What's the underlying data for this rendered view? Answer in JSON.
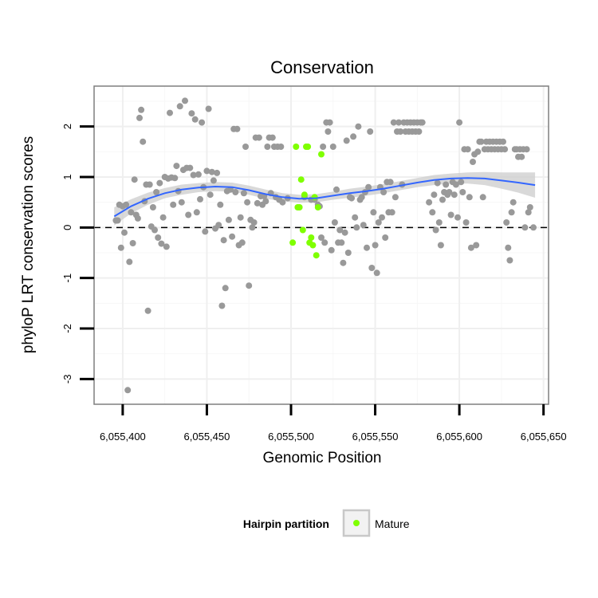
{
  "chart_data": {
    "type": "scatter",
    "title": "Conservation",
    "xlabel": "Genomic Position",
    "ylabel": "phyloP LRT conservation scores",
    "xlim": [
      6055383,
      6055653
    ],
    "ylim": [
      -3.5,
      2.8
    ],
    "x_ticks": [
      6055400,
      6055450,
      6055500,
      6055550,
      6055600,
      6055650
    ],
    "x_tick_labels": [
      "6,055,400",
      "6,055,450",
      "6,055,500",
      "6,055,550",
      "6,055,600",
      "6,055,650"
    ],
    "y_ticks": [
      -3,
      -2,
      -1,
      0,
      1,
      2
    ],
    "y_tick_labels": [
      "-3",
      "-2",
      "-1",
      "0",
      "1",
      "2"
    ],
    "grid": true,
    "reference_line": {
      "y": 0,
      "style": "dashed"
    },
    "legend": {
      "title": "Hairpin partition",
      "placement": "bottom",
      "entries": [
        {
          "label": "Mature",
          "color": "#7fff00"
        }
      ]
    },
    "colors": {
      "other": "#999999",
      "mature": "#7fff00",
      "smooth": "#3366ff",
      "ribbon": "#cccccc"
    },
    "series": [
      {
        "role": "other",
        "points": [
          [
            6055396,
            0.14
          ],
          [
            6055397,
            0.14
          ],
          [
            6055398,
            0.45
          ],
          [
            6055399,
            -0.4
          ],
          [
            6055400,
            0.42
          ],
          [
            6055401,
            -0.1
          ],
          [
            6055402,
            0.45
          ],
          [
            6055403,
            -3.22
          ],
          [
            6055404,
            -0.68
          ],
          [
            6055405,
            0.3
          ],
          [
            6055406,
            -0.31
          ],
          [
            6055407,
            0.95
          ],
          [
            6055408,
            0.25
          ],
          [
            6055409,
            0.18
          ],
          [
            6055410,
            2.17
          ],
          [
            6055411,
            2.33
          ],
          [
            6055412,
            1.7
          ],
          [
            6055413,
            0.52
          ],
          [
            6055414,
            0.85
          ],
          [
            6055415,
            -1.65
          ],
          [
            6055416,
            0.85
          ],
          [
            6055417,
            0.02
          ],
          [
            6055418,
            0.4
          ],
          [
            6055419,
            -0.05
          ],
          [
            6055420,
            0.7
          ],
          [
            6055421,
            -0.2
          ],
          [
            6055422,
            0.88
          ],
          [
            6055423,
            -0.32
          ],
          [
            6055424,
            0.2
          ],
          [
            6055425,
            1.0
          ],
          [
            6055426,
            -0.38
          ],
          [
            6055427,
            0.97
          ],
          [
            6055428,
            2.27
          ],
          [
            6055429,
            0.99
          ],
          [
            6055430,
            0.45
          ],
          [
            6055431,
            0.98
          ],
          [
            6055432,
            1.22
          ],
          [
            6055433,
            0.72
          ],
          [
            6055434,
            2.4
          ],
          [
            6055435,
            0.5
          ],
          [
            6055436,
            1.14
          ],
          [
            6055437,
            2.51
          ],
          [
            6055438,
            1.18
          ],
          [
            6055439,
            0.25
          ],
          [
            6055440,
            1.18
          ],
          [
            6055441,
            2.26
          ],
          [
            6055442,
            1.04
          ],
          [
            6055443,
            2.14
          ],
          [
            6055444,
            0.3
          ],
          [
            6055445,
            1.05
          ],
          [
            6055446,
            0.56
          ],
          [
            6055447,
            2.08
          ],
          [
            6055448,
            0.8
          ],
          [
            6055449,
            -0.08
          ],
          [
            6055450,
            1.12
          ],
          [
            6055451,
            2.35
          ],
          [
            6055452,
            0.65
          ],
          [
            6055453,
            1.1
          ],
          [
            6055454,
            0.93
          ],
          [
            6055455,
            -0.02
          ],
          [
            6055456,
            1.08
          ],
          [
            6055457,
            0.05
          ],
          [
            6055458,
            0.45
          ],
          [
            6055459,
            -1.55
          ],
          [
            6055460,
            -0.25
          ],
          [
            6055461,
            -1.2
          ],
          [
            6055462,
            0.72
          ],
          [
            6055463,
            0.15
          ],
          [
            6055464,
            0.75
          ],
          [
            6055465,
            -0.18
          ],
          [
            6055466,
            1.95
          ],
          [
            6055467,
            0.7
          ],
          [
            6055468,
            1.95
          ],
          [
            6055469,
            -0.35
          ],
          [
            6055470,
            0.2
          ],
          [
            6055471,
            -0.3
          ],
          [
            6055472,
            0.68
          ],
          [
            6055473,
            1.6
          ],
          [
            6055474,
            0.5
          ],
          [
            6055475,
            -1.15
          ],
          [
            6055476,
            0.15
          ],
          [
            6055477,
            0.0
          ],
          [
            6055478,
            0.1
          ],
          [
            6055479,
            1.78
          ],
          [
            6055480,
            0.48
          ],
          [
            6055481,
            1.78
          ],
          [
            6055482,
            0.62
          ],
          [
            6055483,
            0.45
          ],
          [
            6055484,
            0.62
          ],
          [
            6055485,
            0.52
          ],
          [
            6055486,
            1.6
          ],
          [
            6055487,
            1.78
          ],
          [
            6055488,
            0.68
          ],
          [
            6055489,
            1.78
          ],
          [
            6055490,
            1.6
          ],
          [
            6055491,
            0.6
          ],
          [
            6055492,
            1.6
          ],
          [
            6055493,
            0.55
          ],
          [
            6055494,
            1.6
          ],
          [
            6055495,
            0.5
          ],
          [
            6055498,
            0.58
          ],
          [
            6055508,
            0.6
          ],
          [
            6055512,
            0.55
          ],
          [
            6055514,
            0.55
          ],
          [
            6055516,
            0.45
          ],
          [
            6055517,
            0.42
          ],
          [
            6055518,
            -0.2
          ],
          [
            6055519,
            1.6
          ],
          [
            6055520,
            -0.3
          ],
          [
            6055521,
            2.08
          ],
          [
            6055522,
            1.9
          ],
          [
            6055523,
            2.08
          ],
          [
            6055524,
            -0.45
          ],
          [
            6055525,
            1.6
          ],
          [
            6055526,
            0.1
          ],
          [
            6055527,
            0.75
          ],
          [
            6055528,
            -0.3
          ],
          [
            6055529,
            -0.05
          ],
          [
            6055530,
            -0.3
          ],
          [
            6055531,
            -0.7
          ],
          [
            6055532,
            -0.1
          ],
          [
            6055533,
            1.72
          ],
          [
            6055534,
            -0.5
          ],
          [
            6055535,
            0.6
          ],
          [
            6055536,
            0.58
          ],
          [
            6055537,
            1.8
          ],
          [
            6055538,
            0.2
          ],
          [
            6055539,
            0.0
          ],
          [
            6055540,
            2.0
          ],
          [
            6055541,
            0.55
          ],
          [
            6055542,
            0.6
          ],
          [
            6055543,
            0.05
          ],
          [
            6055544,
            0.7
          ],
          [
            6055545,
            -0.4
          ],
          [
            6055546,
            0.8
          ],
          [
            6055547,
            1.9
          ],
          [
            6055548,
            -0.8
          ],
          [
            6055549,
            0.3
          ],
          [
            6055550,
            -0.35
          ],
          [
            6055551,
            -0.9
          ],
          [
            6055552,
            0.1
          ],
          [
            6055553,
            0.8
          ],
          [
            6055554,
            0.2
          ],
          [
            6055555,
            0.7
          ],
          [
            6055556,
            -0.2
          ],
          [
            6055557,
            0.9
          ],
          [
            6055558,
            0.3
          ],
          [
            6055559,
            0.9
          ],
          [
            6055560,
            0.3
          ],
          [
            6055561,
            2.08
          ],
          [
            6055562,
            0.6
          ],
          [
            6055563,
            1.9
          ],
          [
            6055564,
            2.08
          ],
          [
            6055565,
            1.9
          ],
          [
            6055566,
            0.85
          ],
          [
            6055567,
            2.08
          ],
          [
            6055568,
            1.9
          ],
          [
            6055569,
            2.08
          ],
          [
            6055570,
            1.9
          ],
          [
            6055571,
            2.08
          ],
          [
            6055572,
            1.9
          ],
          [
            6055573,
            2.08
          ],
          [
            6055574,
            1.9
          ],
          [
            6055575,
            2.08
          ],
          [
            6055576,
            1.9
          ],
          [
            6055577,
            2.08
          ],
          [
            6055578,
            2.08
          ],
          [
            6055582,
            0.5
          ],
          [
            6055584,
            0.3
          ],
          [
            6055585,
            0.65
          ],
          [
            6055586,
            -0.05
          ],
          [
            6055587,
            0.88
          ],
          [
            6055588,
            0.1
          ],
          [
            6055589,
            -0.35
          ],
          [
            6055590,
            0.55
          ],
          [
            6055591,
            0.7
          ],
          [
            6055592,
            0.85
          ],
          [
            6055593,
            0.65
          ],
          [
            6055594,
            0.7
          ],
          [
            6055595,
            0.25
          ],
          [
            6055596,
            0.9
          ],
          [
            6055597,
            0.65
          ],
          [
            6055598,
            0.85
          ],
          [
            6055599,
            0.2
          ],
          [
            6055600,
            2.08
          ],
          [
            6055601,
            0.9
          ],
          [
            6055602,
            0.7
          ],
          [
            6055603,
            1.55
          ],
          [
            6055604,
            0.1
          ],
          [
            6055605,
            1.55
          ],
          [
            6055606,
            0.6
          ],
          [
            6055607,
            -0.4
          ],
          [
            6055608,
            1.3
          ],
          [
            6055609,
            1.45
          ],
          [
            6055610,
            -0.35
          ],
          [
            6055611,
            1.5
          ],
          [
            6055612,
            1.7
          ],
          [
            6055613,
            1.7
          ],
          [
            6055614,
            0.6
          ],
          [
            6055615,
            1.55
          ],
          [
            6055616,
            1.7
          ],
          [
            6055617,
            1.55
          ],
          [
            6055618,
            1.7
          ],
          [
            6055619,
            1.55
          ],
          [
            6055620,
            1.7
          ],
          [
            6055621,
            1.55
          ],
          [
            6055622,
            1.7
          ],
          [
            6055623,
            1.55
          ],
          [
            6055624,
            1.7
          ],
          [
            6055625,
            1.55
          ],
          [
            6055626,
            1.7
          ],
          [
            6055627,
            1.55
          ],
          [
            6055628,
            0.1
          ],
          [
            6055629,
            -0.4
          ],
          [
            6055630,
            -0.65
          ],
          [
            6055631,
            0.3
          ],
          [
            6055632,
            0.5
          ],
          [
            6055633,
            1.55
          ],
          [
            6055634,
            1.55
          ],
          [
            6055635,
            1.4
          ],
          [
            6055636,
            1.55
          ],
          [
            6055637,
            1.4
          ],
          [
            6055638,
            1.55
          ],
          [
            6055639,
            0.0
          ],
          [
            6055640,
            1.55
          ],
          [
            6055641,
            0.3
          ],
          [
            6055642,
            0.4
          ],
          [
            6055644,
            0.0
          ]
        ]
      },
      {
        "name": "Mature",
        "role": "mature",
        "points": [
          [
            6055501,
            -0.3
          ],
          [
            6055503,
            1.6
          ],
          [
            6055504,
            0.4
          ],
          [
            6055505,
            0.4
          ],
          [
            6055506,
            0.95
          ],
          [
            6055507,
            -0.05
          ],
          [
            6055508,
            0.65
          ],
          [
            6055509,
            1.6
          ],
          [
            6055510,
            1.6
          ],
          [
            6055511,
            -0.3
          ],
          [
            6055512,
            -0.2
          ],
          [
            6055513,
            -0.35
          ],
          [
            6055514,
            0.6
          ],
          [
            6055515,
            -0.55
          ],
          [
            6055516,
            0.4
          ],
          [
            6055518,
            1.45
          ]
        ]
      }
    ],
    "smooth": [
      [
        6055395,
        0.22
      ],
      [
        6055405,
        0.42
      ],
      [
        6055415,
        0.57
      ],
      [
        6055425,
        0.68
      ],
      [
        6055435,
        0.75
      ],
      [
        6055445,
        0.79
      ],
      [
        6055455,
        0.81
      ],
      [
        6055465,
        0.8
      ],
      [
        6055475,
        0.74
      ],
      [
        6055485,
        0.66
      ],
      [
        6055495,
        0.6
      ],
      [
        6055505,
        0.57
      ],
      [
        6055515,
        0.58
      ],
      [
        6055525,
        0.63
      ],
      [
        6055535,
        0.68
      ],
      [
        6055545,
        0.72
      ],
      [
        6055555,
        0.77
      ],
      [
        6055565,
        0.83
      ],
      [
        6055575,
        0.89
      ],
      [
        6055585,
        0.94
      ],
      [
        6055595,
        0.97
      ],
      [
        6055605,
        0.98
      ],
      [
        6055615,
        0.97
      ],
      [
        6055625,
        0.93
      ],
      [
        6055635,
        0.89
      ],
      [
        6055645,
        0.84
      ]
    ],
    "ribbon_halfwidth": [
      0.18,
      0.14,
      0.12,
      0.1,
      0.1,
      0.09,
      0.09,
      0.09,
      0.09,
      0.09,
      0.08,
      0.08,
      0.08,
      0.08,
      0.09,
      0.09,
      0.09,
      0.09,
      0.09,
      0.1,
      0.1,
      0.11,
      0.13,
      0.16,
      0.2,
      0.25
    ]
  }
}
